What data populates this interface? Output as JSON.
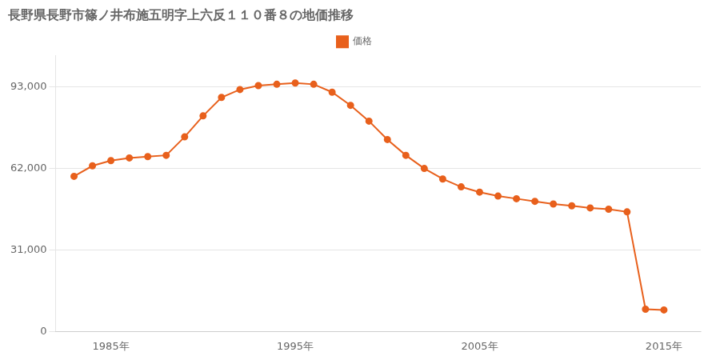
{
  "chart_data": {
    "type": "line",
    "title": "長野県長野市篠ノ井布施五明字上六反１１０番８の地価推移",
    "x": [
      1983,
      1984,
      1985,
      1986,
      1987,
      1988,
      1989,
      1990,
      1991,
      1992,
      1993,
      1994,
      1995,
      1996,
      1997,
      1998,
      1999,
      2000,
      2001,
      2002,
      2003,
      2004,
      2005,
      2006,
      2007,
      2008,
      2009,
      2010,
      2011,
      2012,
      2013,
      2014,
      2015
    ],
    "series": [
      {
        "name": "価格",
        "color": "#e8601c",
        "marker": "circle",
        "values": [
          59000,
          63000,
          65000,
          66000,
          66500,
          67000,
          74000,
          82000,
          89000,
          92000,
          93500,
          94000,
          94500,
          94000,
          91000,
          86000,
          80000,
          73000,
          67000,
          62000,
          58000,
          55000,
          53000,
          51500,
          50500,
          49500,
          48500,
          47800,
          47000,
          46500,
          45500,
          8500,
          8200
        ]
      }
    ],
    "xlim": [
      1982,
      2017
    ],
    "xticks": [
      {
        "value": 1985,
        "label": "1985年"
      },
      {
        "value": 1995,
        "label": "1995年"
      },
      {
        "value": 2005,
        "label": "2005年"
      },
      {
        "value": 2015,
        "label": "2015年"
      }
    ],
    "ylim": [
      0,
      105000
    ],
    "yticks": [
      0,
      {
        "value": 31000,
        "label": "31,000"
      },
      {
        "value": 62000,
        "label": "62,000"
      },
      {
        "value": 93000,
        "label": "93,000"
      }
    ],
    "grid": "y",
    "legend": "top"
  }
}
